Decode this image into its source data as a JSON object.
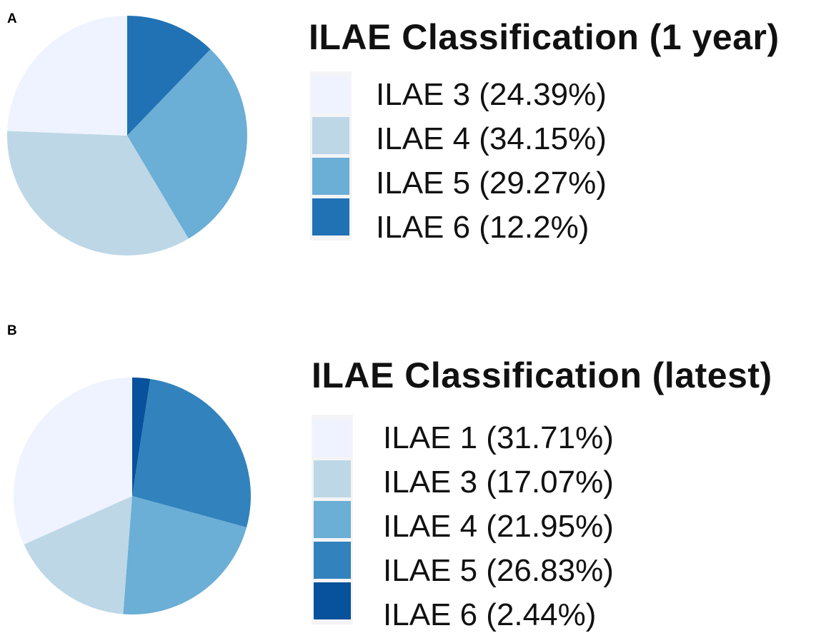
{
  "chart_data": [
    {
      "type": "pie",
      "panel_label": "A",
      "title": "ILAE Classification (1 year)",
      "start_angle_deg": 0,
      "direction": "clockwise",
      "slices": [
        {
          "label": "ILAE 6 (12.2%)",
          "value": 12.2,
          "color": "#2171b5"
        },
        {
          "label": "ILAE 5 (29.27%)",
          "value": 29.27,
          "color": "#6baed6"
        },
        {
          "label": "ILAE 4 (34.15%)",
          "value": 34.15,
          "color": "#bdd7e7"
        },
        {
          "label": "ILAE 3 (24.39%)",
          "value": 24.39,
          "color": "#eff3ff"
        }
      ],
      "legend_order": [
        "ILAE 3 (24.39%)",
        "ILAE 4 (34.15%)",
        "ILAE 5 (29.27%)",
        "ILAE 6 (12.2%)"
      ],
      "legend_placement": "right"
    },
    {
      "type": "pie",
      "panel_label": "B",
      "title": "ILAE Classification (latest)",
      "start_angle_deg": 0,
      "direction": "clockwise",
      "slices": [
        {
          "label": "ILAE 6 (2.44%)",
          "value": 2.44,
          "color": "#08519c"
        },
        {
          "label": "ILAE 5 (26.83%)",
          "value": 26.83,
          "color": "#3182bd"
        },
        {
          "label": "ILAE 4 (21.95%)",
          "value": 21.95,
          "color": "#6baed6"
        },
        {
          "label": "ILAE 3 (17.07%)",
          "value": 17.07,
          "color": "#bdd7e7"
        },
        {
          "label": "ILAE 1 (31.71%)",
          "value": 31.71,
          "color": "#eff3ff"
        }
      ],
      "legend_order": [
        "ILAE 1 (31.71%)",
        "ILAE 3 (17.07%)",
        "ILAE 4 (21.95%)",
        "ILAE 5 (26.83%)",
        "ILAE 6 (2.44%)"
      ],
      "legend_placement": "right"
    }
  ]
}
